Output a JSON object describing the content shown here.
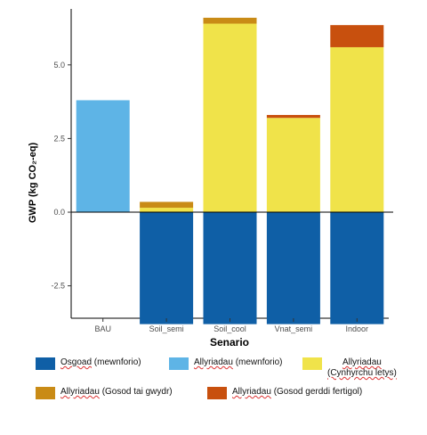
{
  "chart_data": {
    "type": "bar",
    "stacked": true,
    "categories": [
      "BAU",
      "Soil_semi",
      "Soil_cool",
      "Vnat_semi",
      "Indoor"
    ],
    "xlabel": "Senario",
    "ylabel": "GWP (kg CO₂-eq)",
    "ylim": [
      -3.6,
      6.9
    ],
    "yticks": [
      "-2.5",
      "0.0",
      "2.5",
      "5.0"
    ],
    "ytick_values": [
      -2.5,
      0.0,
      2.5,
      5.0
    ],
    "grid": false,
    "legend_position": "bottom",
    "series": [
      {
        "name": "Osgoad (mewnforio)",
        "color": "#0f5fa6",
        "values": [
          0,
          -3.8,
          -3.8,
          -3.8,
          -3.8
        ]
      },
      {
        "name": "Allyriadau (mewnforio)",
        "color": "#5eb4e6",
        "values": [
          3.8,
          0,
          0,
          0,
          0
        ]
      },
      {
        "name": "Allyriadau (Cynhyrchu letys)",
        "color": "#f0e34a",
        "values": [
          0,
          0.15,
          6.4,
          3.2,
          5.6
        ]
      },
      {
        "name": "Allyriadau (Gosod tai gwydr)",
        "color": "#c98b16",
        "values": [
          0,
          0.2,
          0.2,
          0,
          0
        ]
      },
      {
        "name": "Allyriadau (Gosod gerddi fertigol)",
        "color": "#c8500e",
        "values": [
          0,
          0,
          0,
          0.1,
          0.75
        ]
      }
    ]
  },
  "legend": [
    {
      "prefix": "",
      "main": "Osgoad",
      "suffix": " (mewnforio)",
      "color": "#0f5fa6"
    },
    {
      "prefix": "",
      "main": "Allyriadau",
      "suffix": " (mewnforio)",
      "color": "#5eb4e6"
    },
    {
      "prefix": "",
      "main": "Allyriadau",
      "suffix": "(Cynhyrchu letys)",
      "color": "#f0e34a"
    },
    {
      "prefix": "",
      "main": "Allyriadau",
      "suffix": " (Gosod tai gwydr)",
      "color": "#c98b16"
    },
    {
      "prefix": "",
      "main": "Allyriadau",
      "suffix": " (Gosod gerddi fertigol)",
      "color": "#c8500e"
    }
  ]
}
